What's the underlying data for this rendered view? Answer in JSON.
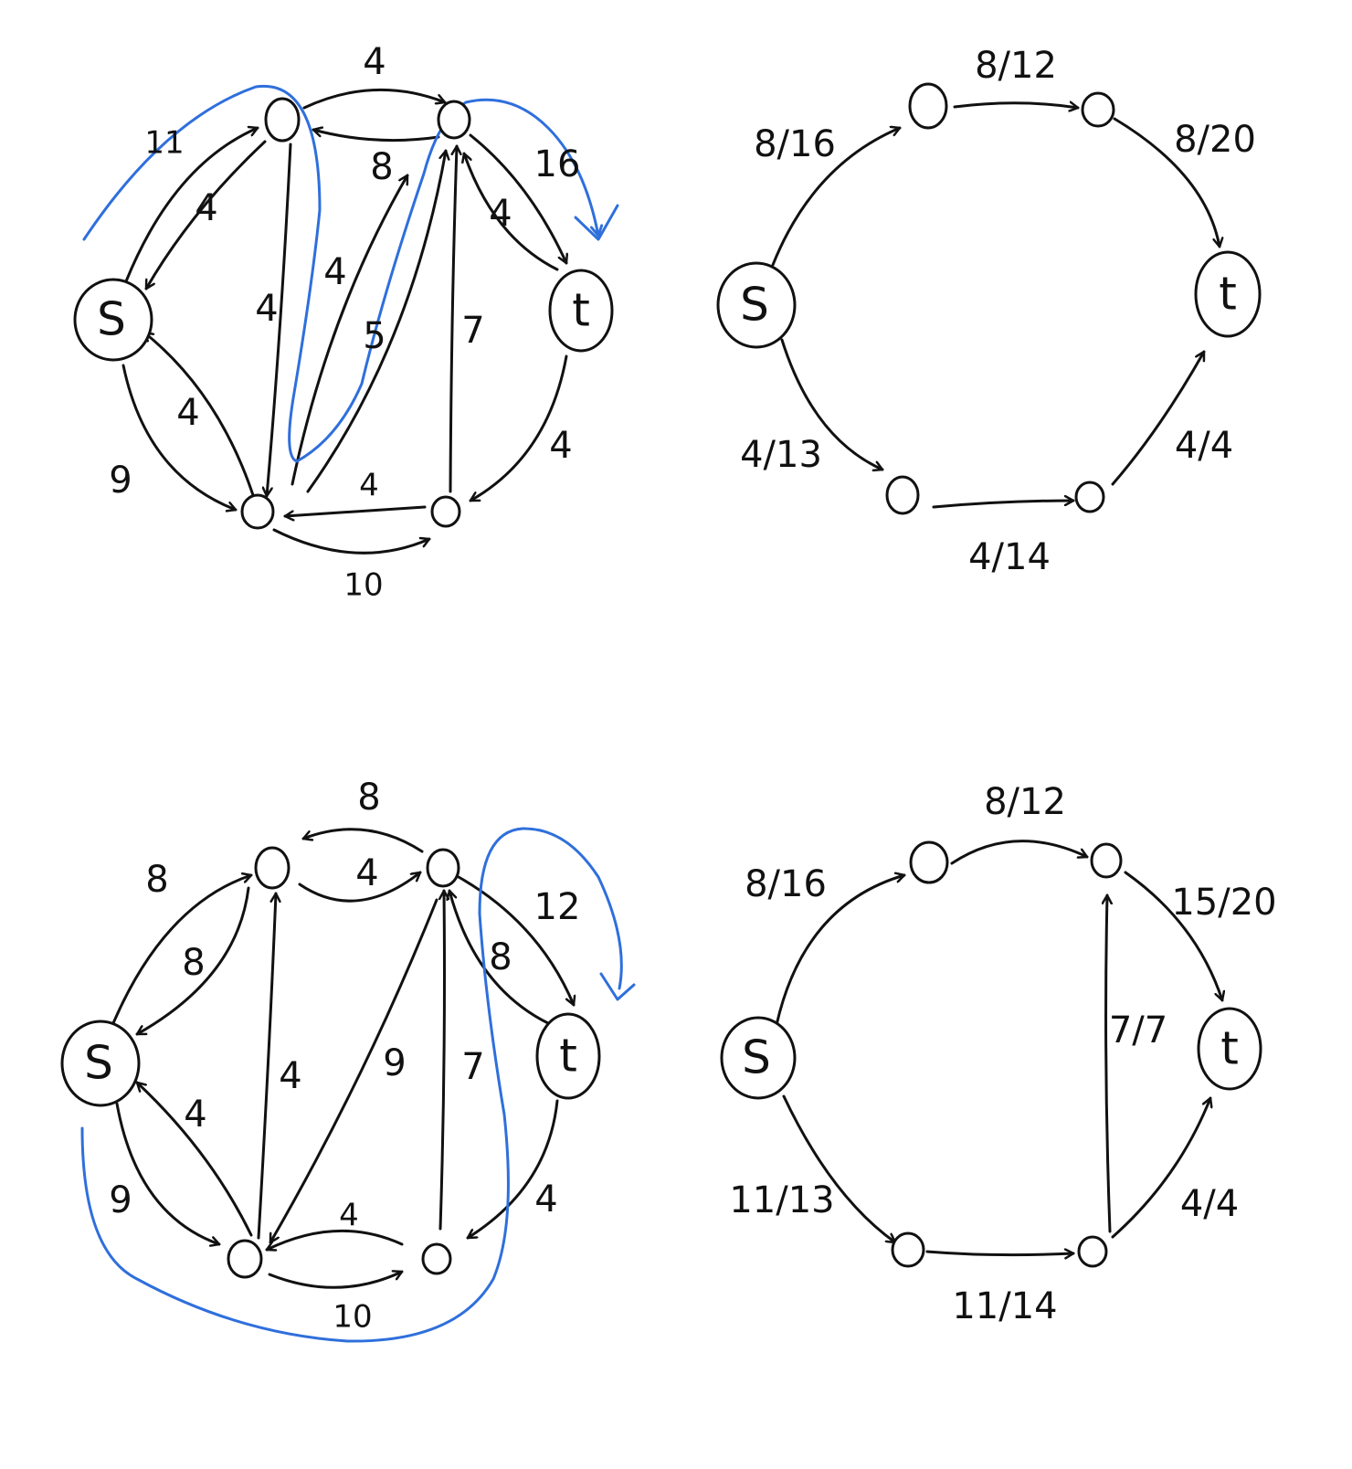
{
  "colors": {
    "ink": "#111111",
    "highlight": "#2f6fdc",
    "background": "#ffffff"
  },
  "panels": {
    "residual1": {
      "nodes": {
        "s": "S",
        "t": "t"
      },
      "labels": [
        "4",
        "11",
        "4",
        "8",
        "16",
        "4",
        "4",
        "4",
        "5",
        "7",
        "4",
        "9",
        "4",
        "4",
        "10"
      ]
    },
    "flow1": {
      "nodes": {
        "s": "S",
        "t": "t"
      },
      "labels": [
        "8/12",
        "8/16",
        "8/20",
        "4/13",
        "4/14",
        "4/4"
      ]
    },
    "residual2": {
      "nodes": {
        "s": "S",
        "t": "t"
      },
      "labels": [
        "8",
        "4",
        "8",
        "8",
        "12",
        "8",
        "4",
        "9",
        "7",
        "4",
        "9",
        "4",
        "4",
        "10"
      ]
    },
    "flow2": {
      "nodes": {
        "s": "S",
        "t": "t"
      },
      "labels": [
        "8/12",
        "8/16",
        "15/20",
        "7/7",
        "11/13",
        "11/14",
        "4/4"
      ]
    }
  }
}
